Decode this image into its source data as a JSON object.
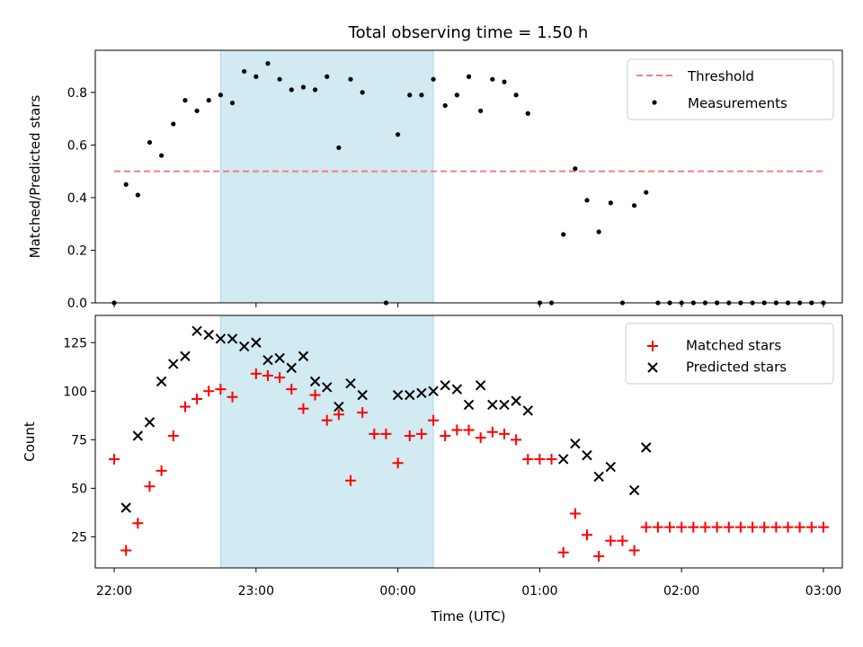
{
  "figure": {
    "title": "Total observing time = 1.50 h"
  },
  "chart_data": [
    {
      "type": "scatter",
      "title": "Total observing time = 1.50 h",
      "xlabel": "",
      "ylabel": "Matched/Predicted stars",
      "xlim": [
        "21:52",
        "03:08"
      ],
      "ylim": [
        0,
        0.96
      ],
      "yticks": [
        0.0,
        0.2,
        0.4,
        0.6,
        0.8
      ],
      "ytick_labels": [
        "0.0",
        "0.2",
        "0.4",
        "0.6",
        "0.8"
      ],
      "shaded_span": [
        "22:45",
        "00:15"
      ],
      "legend": {
        "placement": "top-right"
      },
      "threshold": {
        "name": "Threshold",
        "value": 0.5,
        "x_range": [
          "22:00",
          "03:00"
        ],
        "color": "#f08080",
        "style": "dashed"
      },
      "series": [
        {
          "name": "Measurements",
          "marker": "dot",
          "color": "#000000",
          "points": [
            [
              "22:00",
              0.0
            ],
            [
              "22:05",
              0.45
            ],
            [
              "22:10",
              0.41
            ],
            [
              "22:15",
              0.61
            ],
            [
              "22:20",
              0.56
            ],
            [
              "22:25",
              0.68
            ],
            [
              "22:30",
              0.77
            ],
            [
              "22:35",
              0.73
            ],
            [
              "22:40",
              0.77
            ],
            [
              "22:45",
              0.79
            ],
            [
              "22:50",
              0.76
            ],
            [
              "22:55",
              0.88
            ],
            [
              "23:00",
              0.86
            ],
            [
              "23:05",
              0.91
            ],
            [
              "23:10",
              0.85
            ],
            [
              "23:15",
              0.81
            ],
            [
              "23:20",
              0.82
            ],
            [
              "23:25",
              0.81
            ],
            [
              "23:30",
              0.86
            ],
            [
              "23:35",
              0.59
            ],
            [
              "23:40",
              0.85
            ],
            [
              "23:45",
              0.8
            ],
            [
              "23:55",
              0.0
            ],
            [
              "00:00",
              0.64
            ],
            [
              "00:05",
              0.79
            ],
            [
              "00:10",
              0.79
            ],
            [
              "00:15",
              0.85
            ],
            [
              "00:20",
              0.75
            ],
            [
              "00:25",
              0.79
            ],
            [
              "00:30",
              0.86
            ],
            [
              "00:35",
              0.73
            ],
            [
              "00:40",
              0.85
            ],
            [
              "00:45",
              0.84
            ],
            [
              "00:50",
              0.79
            ],
            [
              "00:55",
              0.72
            ],
            [
              "01:00",
              0.0
            ],
            [
              "01:05",
              0.0
            ],
            [
              "01:10",
              0.26
            ],
            [
              "01:15",
              0.51
            ],
            [
              "01:20",
              0.39
            ],
            [
              "01:25",
              0.27
            ],
            [
              "01:30",
              0.38
            ],
            [
              "01:35",
              0.0
            ],
            [
              "01:40",
              0.37
            ],
            [
              "01:45",
              0.42
            ],
            [
              "01:50",
              0.0
            ],
            [
              "01:55",
              0.0
            ],
            [
              "02:00",
              0.0
            ],
            [
              "02:05",
              0.0
            ],
            [
              "02:10",
              0.0
            ],
            [
              "02:15",
              0.0
            ],
            [
              "02:20",
              0.0
            ],
            [
              "02:25",
              0.0
            ],
            [
              "02:30",
              0.0
            ],
            [
              "02:35",
              0.0
            ],
            [
              "02:40",
              0.0
            ],
            [
              "02:45",
              0.0
            ],
            [
              "02:50",
              0.0
            ],
            [
              "02:55",
              0.0
            ],
            [
              "03:00",
              0.0
            ]
          ]
        }
      ]
    },
    {
      "type": "scatter",
      "xlabel": "Time (UTC)",
      "ylabel": "Count",
      "xlim": [
        "21:52",
        "03:08"
      ],
      "ylim": [
        9,
        139
      ],
      "xticks": [
        "22:00",
        "23:00",
        "00:00",
        "01:00",
        "02:00",
        "03:00"
      ],
      "xtick_labels": [
        "22:00",
        "23:00",
        "00:00",
        "01:00",
        "02:00",
        "03:00"
      ],
      "yticks": [
        25,
        50,
        75,
        100,
        125
      ],
      "ytick_labels": [
        "25",
        "50",
        "75",
        "100",
        "125"
      ],
      "shaded_span": [
        "22:45",
        "00:15"
      ],
      "legend": {
        "placement": "top-right"
      },
      "series": [
        {
          "name": "Matched stars",
          "marker": "plus",
          "color": "#ff0000",
          "points": [
            [
              "22:00",
              65
            ],
            [
              "22:05",
              18
            ],
            [
              "22:10",
              32
            ],
            [
              "22:15",
              51
            ],
            [
              "22:20",
              59
            ],
            [
              "22:25",
              77
            ],
            [
              "22:30",
              92
            ],
            [
              "22:35",
              96
            ],
            [
              "22:40",
              100
            ],
            [
              "22:45",
              101
            ],
            [
              "22:50",
              97
            ],
            [
              "23:00",
              109
            ],
            [
              "23:05",
              108
            ],
            [
              "23:10",
              107
            ],
            [
              "23:15",
              101
            ],
            [
              "23:20",
              91
            ],
            [
              "23:25",
              98
            ],
            [
              "23:30",
              85
            ],
            [
              "23:35",
              88
            ],
            [
              "23:40",
              54
            ],
            [
              "23:45",
              89
            ],
            [
              "23:50",
              78
            ],
            [
              "23:55",
              78
            ],
            [
              "00:00",
              63
            ],
            [
              "00:05",
              77
            ],
            [
              "00:10",
              78
            ],
            [
              "00:15",
              85
            ],
            [
              "00:20",
              77
            ],
            [
              "00:25",
              80
            ],
            [
              "00:30",
              80
            ],
            [
              "00:35",
              76
            ],
            [
              "00:40",
              79
            ],
            [
              "00:45",
              78
            ],
            [
              "00:50",
              75
            ],
            [
              "00:55",
              65
            ],
            [
              "01:00",
              65
            ],
            [
              "01:05",
              65
            ],
            [
              "01:10",
              17
            ],
            [
              "01:15",
              37
            ],
            [
              "01:20",
              26
            ],
            [
              "01:25",
              15
            ],
            [
              "01:30",
              23
            ],
            [
              "01:35",
              23
            ],
            [
              "01:40",
              18
            ],
            [
              "01:45",
              30
            ],
            [
              "01:50",
              30
            ],
            [
              "01:55",
              30
            ],
            [
              "02:00",
              30
            ],
            [
              "02:05",
              30
            ],
            [
              "02:10",
              30
            ],
            [
              "02:15",
              30
            ],
            [
              "02:20",
              30
            ],
            [
              "02:25",
              30
            ],
            [
              "02:30",
              30
            ],
            [
              "02:35",
              30
            ],
            [
              "02:40",
              30
            ],
            [
              "02:45",
              30
            ],
            [
              "02:50",
              30
            ],
            [
              "02:55",
              30
            ],
            [
              "03:00",
              30
            ]
          ]
        },
        {
          "name": "Predicted stars",
          "marker": "x",
          "color": "#000000",
          "points": [
            [
              "22:05",
              40
            ],
            [
              "22:10",
              77
            ],
            [
              "22:15",
              84
            ],
            [
              "22:20",
              105
            ],
            [
              "22:25",
              114
            ],
            [
              "22:30",
              118
            ],
            [
              "22:35",
              131
            ],
            [
              "22:40",
              129
            ],
            [
              "22:45",
              127
            ],
            [
              "22:50",
              127
            ],
            [
              "22:55",
              123
            ],
            [
              "23:00",
              125
            ],
            [
              "23:05",
              116
            ],
            [
              "23:10",
              117
            ],
            [
              "23:15",
              112
            ],
            [
              "23:20",
              118
            ],
            [
              "23:25",
              105
            ],
            [
              "23:30",
              102
            ],
            [
              "23:35",
              92
            ],
            [
              "23:40",
              104
            ],
            [
              "23:45",
              98
            ],
            [
              "00:00",
              98
            ],
            [
              "00:05",
              98
            ],
            [
              "00:10",
              99
            ],
            [
              "00:15",
              100
            ],
            [
              "00:20",
              103
            ],
            [
              "00:25",
              101
            ],
            [
              "00:30",
              93
            ],
            [
              "00:35",
              103
            ],
            [
              "00:40",
              93
            ],
            [
              "00:45",
              93
            ],
            [
              "00:50",
              95
            ],
            [
              "00:55",
              90
            ],
            [
              "01:10",
              65
            ],
            [
              "01:15",
              73
            ],
            [
              "01:20",
              67
            ],
            [
              "01:25",
              56
            ],
            [
              "01:30",
              61
            ],
            [
              "01:40",
              49
            ],
            [
              "01:45",
              71
            ]
          ]
        }
      ]
    }
  ]
}
